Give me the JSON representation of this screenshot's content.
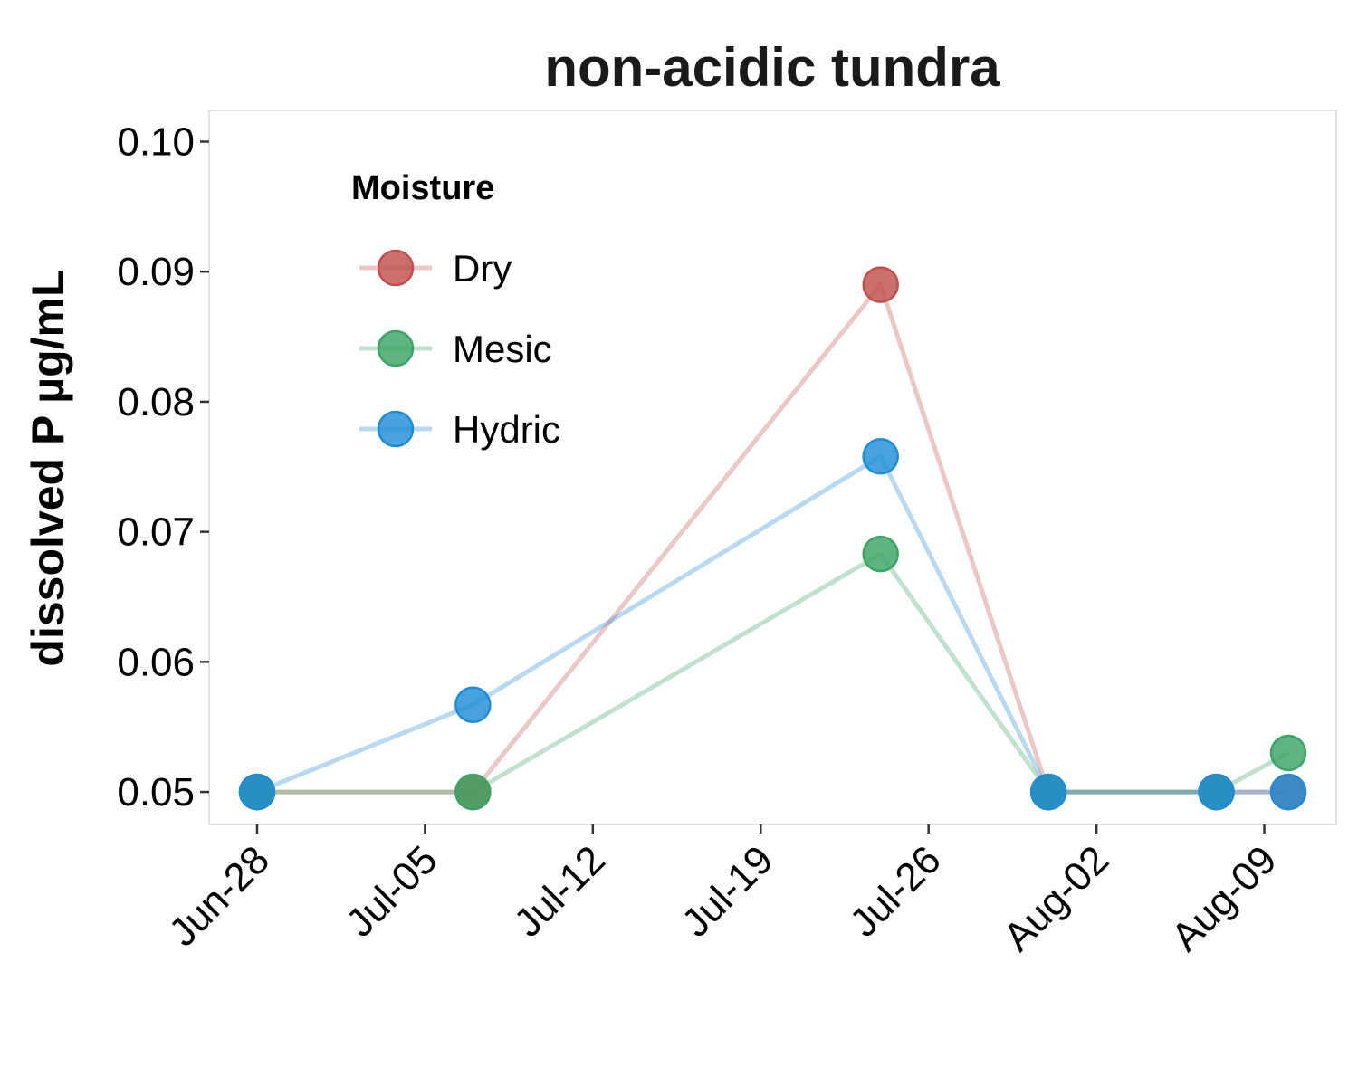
{
  "chart_data": {
    "type": "line",
    "title": "non-acidic tundra",
    "xlabel": "",
    "ylabel": "dissolved P µg/mL",
    "x_axis_type": "date",
    "x_ticks": [
      "2000-06-28",
      "2000-07-05",
      "2000-07-12",
      "2000-07-19",
      "2000-07-26",
      "2000-08-02",
      "2000-08-09"
    ],
    "x_tick_labels": [
      "Jun-28",
      "Jul-05",
      "Jul-12",
      "Jul-19",
      "Jul-26",
      "Aug-02",
      "Aug-09"
    ],
    "xlim": [
      "2000-06-26",
      "2000-08-12"
    ],
    "y_ticks": [
      0.05,
      0.06,
      0.07,
      0.08,
      0.09,
      0.1
    ],
    "y_tick_labels": [
      "0.05",
      "0.06",
      "0.07",
      "0.08",
      "0.09",
      "0.10"
    ],
    "ylim": [
      0.0475,
      0.1024
    ],
    "grid": false,
    "legend": {
      "title": "Moisture",
      "position": "top-left"
    },
    "series": [
      {
        "name": "Dry",
        "color": "#c0504d",
        "points": [
          {
            "x": "2000-06-28",
            "y": 0.05
          },
          {
            "x": "2000-07-07",
            "y": 0.05
          },
          {
            "x": "2000-07-24",
            "y": 0.089
          },
          {
            "x": "2000-07-31",
            "y": 0.05
          },
          {
            "x": "2000-08-07",
            "y": 0.05
          },
          {
            "x": "2000-08-10",
            "y": 0.05
          }
        ]
      },
      {
        "name": "Mesic",
        "color": "#3aa564",
        "points": [
          {
            "x": "2000-06-28",
            "y": 0.05
          },
          {
            "x": "2000-07-07",
            "y": 0.05
          },
          {
            "x": "2000-07-24",
            "y": 0.0683
          },
          {
            "x": "2000-07-31",
            "y": 0.05
          },
          {
            "x": "2000-08-07",
            "y": 0.05
          },
          {
            "x": "2000-08-10",
            "y": 0.053
          }
        ]
      },
      {
        "name": "Hydric",
        "color": "#1f8dd6",
        "points": [
          {
            "x": "2000-06-28",
            "y": 0.05
          },
          {
            "x": "2000-07-07",
            "y": 0.0567
          },
          {
            "x": "2000-07-24",
            "y": 0.0758
          },
          {
            "x": "2000-07-31",
            "y": 0.05
          },
          {
            "x": "2000-08-07",
            "y": 0.05
          },
          {
            "x": "2000-08-10",
            "y": 0.05
          }
        ]
      }
    ]
  }
}
